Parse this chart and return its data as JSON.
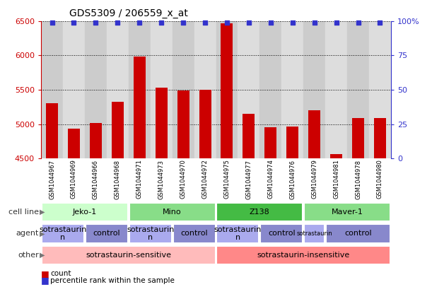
{
  "title": "GDS5309 / 206559_x_at",
  "samples": [
    "GSM1044967",
    "GSM1044969",
    "GSM1044966",
    "GSM1044968",
    "GSM1044971",
    "GSM1044973",
    "GSM1044970",
    "GSM1044972",
    "GSM1044975",
    "GSM1044977",
    "GSM1044974",
    "GSM1044976",
    "GSM1044979",
    "GSM1044981",
    "GSM1044978",
    "GSM1044980"
  ],
  "counts": [
    5300,
    4930,
    5020,
    5320,
    5980,
    5530,
    5490,
    5500,
    6470,
    5150,
    4950,
    4960,
    5200,
    4560,
    5090,
    5090
  ],
  "percentiles": [
    99,
    99,
    99,
    99,
    99,
    99,
    99,
    99,
    99,
    99,
    99,
    99,
    99,
    99,
    99,
    99
  ],
  "ylim_left": [
    4500,
    6500
  ],
  "ylim_right": [
    0,
    100
  ],
  "yticks_left": [
    4500,
    5000,
    5500,
    6000,
    6500
  ],
  "yticks_right": [
    0,
    25,
    50,
    75,
    100
  ],
  "bar_color": "#cc0000",
  "dot_color": "#3333cc",
  "sample_bg_even": "#cccccc",
  "sample_bg_odd": "#dddddd",
  "cell_line_groups": [
    {
      "label": "Jeko-1",
      "start": 0,
      "end": 3,
      "color": "#ccffcc"
    },
    {
      "label": "Mino",
      "start": 4,
      "end": 7,
      "color": "#88dd88"
    },
    {
      "label": "Z138",
      "start": 8,
      "end": 11,
      "color": "#44bb44"
    },
    {
      "label": "Maver-1",
      "start": 12,
      "end": 15,
      "color": "#88dd88"
    }
  ],
  "agent_groups": [
    {
      "label": "sotrastaurin\nn",
      "start": 0,
      "end": 1,
      "color": "#aaaaee",
      "fontsize": 8
    },
    {
      "label": "control",
      "start": 2,
      "end": 3,
      "color": "#8888cc",
      "fontsize": 8
    },
    {
      "label": "sotrastaurin\nn",
      "start": 4,
      "end": 5,
      "color": "#aaaaee",
      "fontsize": 8
    },
    {
      "label": "control",
      "start": 6,
      "end": 7,
      "color": "#8888cc",
      "fontsize": 8
    },
    {
      "label": "sotrastaurin\nn",
      "start": 8,
      "end": 9,
      "color": "#aaaaee",
      "fontsize": 8
    },
    {
      "label": "control",
      "start": 10,
      "end": 11,
      "color": "#8888cc",
      "fontsize": 8
    },
    {
      "label": "sotrastaurin",
      "start": 12,
      "end": 12,
      "color": "#aaaaee",
      "fontsize": 6
    },
    {
      "label": "control",
      "start": 13,
      "end": 15,
      "color": "#8888cc",
      "fontsize": 8
    }
  ],
  "other_groups": [
    {
      "label": "sotrastaurin-sensitive",
      "start": 0,
      "end": 7,
      "color": "#ffbbbb"
    },
    {
      "label": "sotrastaurin-insensitive",
      "start": 8,
      "end": 15,
      "color": "#ff8888"
    }
  ],
  "row_labels": [
    "cell line",
    "agent",
    "other"
  ],
  "axis_color_left": "#cc0000",
  "axis_color_right": "#3333cc",
  "legend_items": [
    {
      "color": "#cc0000",
      "label": "count"
    },
    {
      "color": "#3333cc",
      "label": "percentile rank within the sample"
    }
  ]
}
